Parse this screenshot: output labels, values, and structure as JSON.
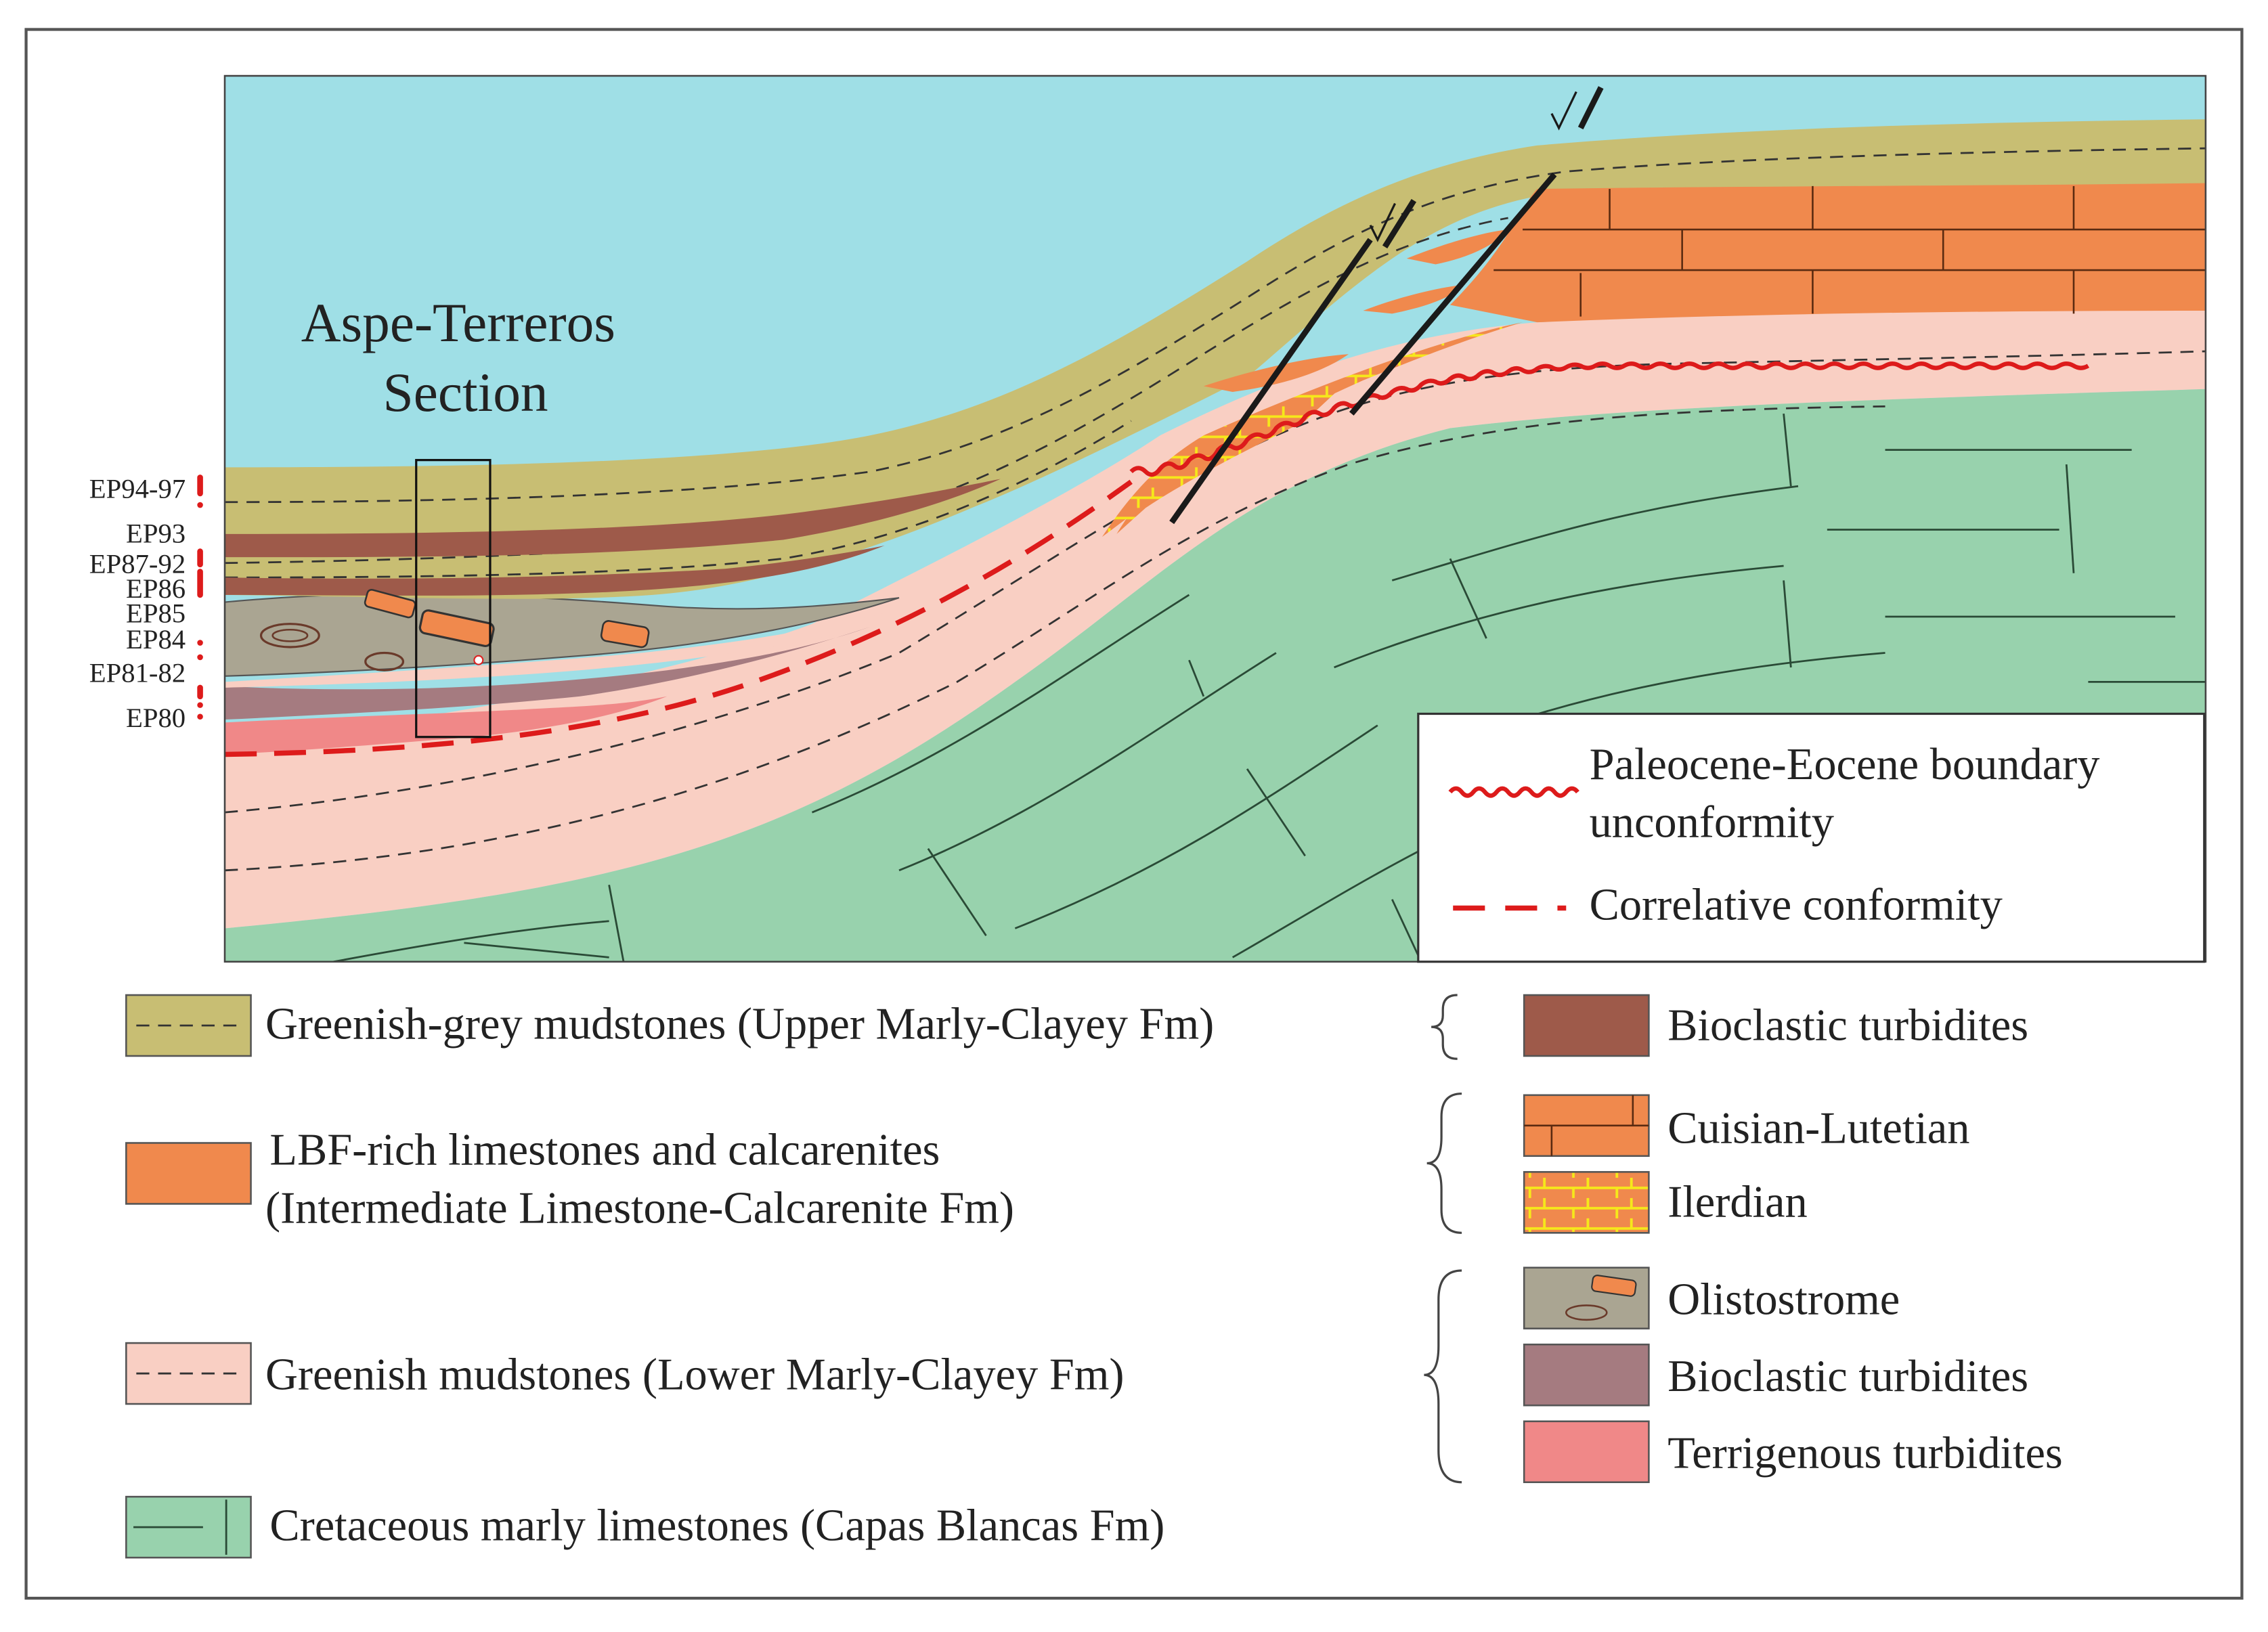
{
  "section_title": {
    "line1": "Aspe-Terreros",
    "line2": "Section"
  },
  "samples": [
    "EP94-97",
    "EP93",
    "EP87-92",
    "EP86",
    "EP85",
    "EP84",
    "EP81-82",
    "EP80"
  ],
  "line_legend": {
    "unconformity_1": "Paleocene-Eocene boundary",
    "unconformity_2": "unconformity",
    "conformity": "Correlative conformity"
  },
  "legend": {
    "upper_marly": "Greenish-grey mudstones (Upper Marly-Clayey Fm)",
    "lbf_1": "LBF-rich limestones and calcarenites",
    "lbf_2": "(Intermediate Limestone-Calcarenite Fm)",
    "lower_marly": "Greenish mudstones (Lower Marly-Clayey Fm)",
    "cretaceous": "Cretaceous marly limestones (Capas Blancas Fm)",
    "bioclastic_upper": "Bioclastic turbidites",
    "cuisian": "Cuisian-Lutetian",
    "ilerdian": "Ilerdian",
    "olistostrome": "Olistostrome",
    "bioclastic_lower": "Bioclastic turbidites",
    "terrigenous": "Terrigenous turbidites"
  },
  "colors": {
    "sea": "#9fdfe6",
    "upper_marly": "#c8be73",
    "lbf": "#f0894d",
    "lower_marly": "#f9cfc3",
    "cretaceous": "#98d2ad",
    "bioclastic_upper": "#9e5a4a",
    "olistostrome": "#aaa592",
    "bioclastic_lower": "#a57b80",
    "terrigenous": "#f08888",
    "boundary_red": "#dd1b1b"
  }
}
